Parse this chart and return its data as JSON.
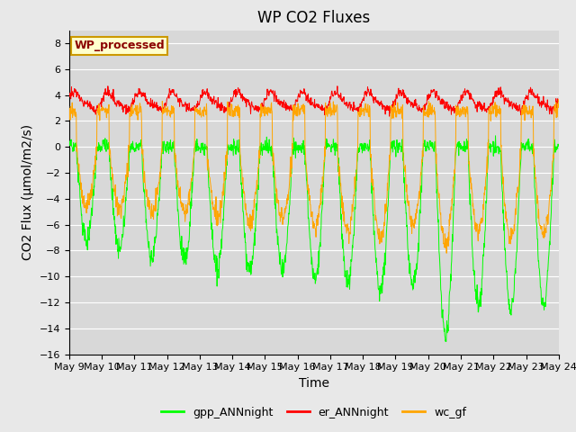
{
  "title": "WP CO2 Fluxes",
  "xlabel": "Time",
  "ylabel": "CO2 Flux (μmol/m2/s)",
  "ylim": [
    -16,
    9
  ],
  "yticks": [
    -16,
    -14,
    -12,
    -10,
    -8,
    -6,
    -4,
    -2,
    0,
    2,
    4,
    6,
    8
  ],
  "x_tick_days": [
    9,
    10,
    11,
    12,
    13,
    14,
    15,
    16,
    17,
    18,
    19,
    20,
    21,
    22,
    23,
    24
  ],
  "colors": {
    "gpp_ANNnight": "#00FF00",
    "er_ANNnight": "#FF0000",
    "wc_gf": "#FFA500"
  },
  "legend_label": "WP_processed",
  "legend_text_color": "#8B0000",
  "legend_box_facecolor": "#FFFFCC",
  "legend_box_edgecolor": "#CC9900",
  "fig_facecolor": "#E8E8E8",
  "plot_facecolor": "#D8D8D8",
  "grid_color": "#FFFFFF",
  "title_fontsize": 12,
  "axis_label_fontsize": 10,
  "tick_label_fontsize": 8,
  "legend_fontsize": 9
}
